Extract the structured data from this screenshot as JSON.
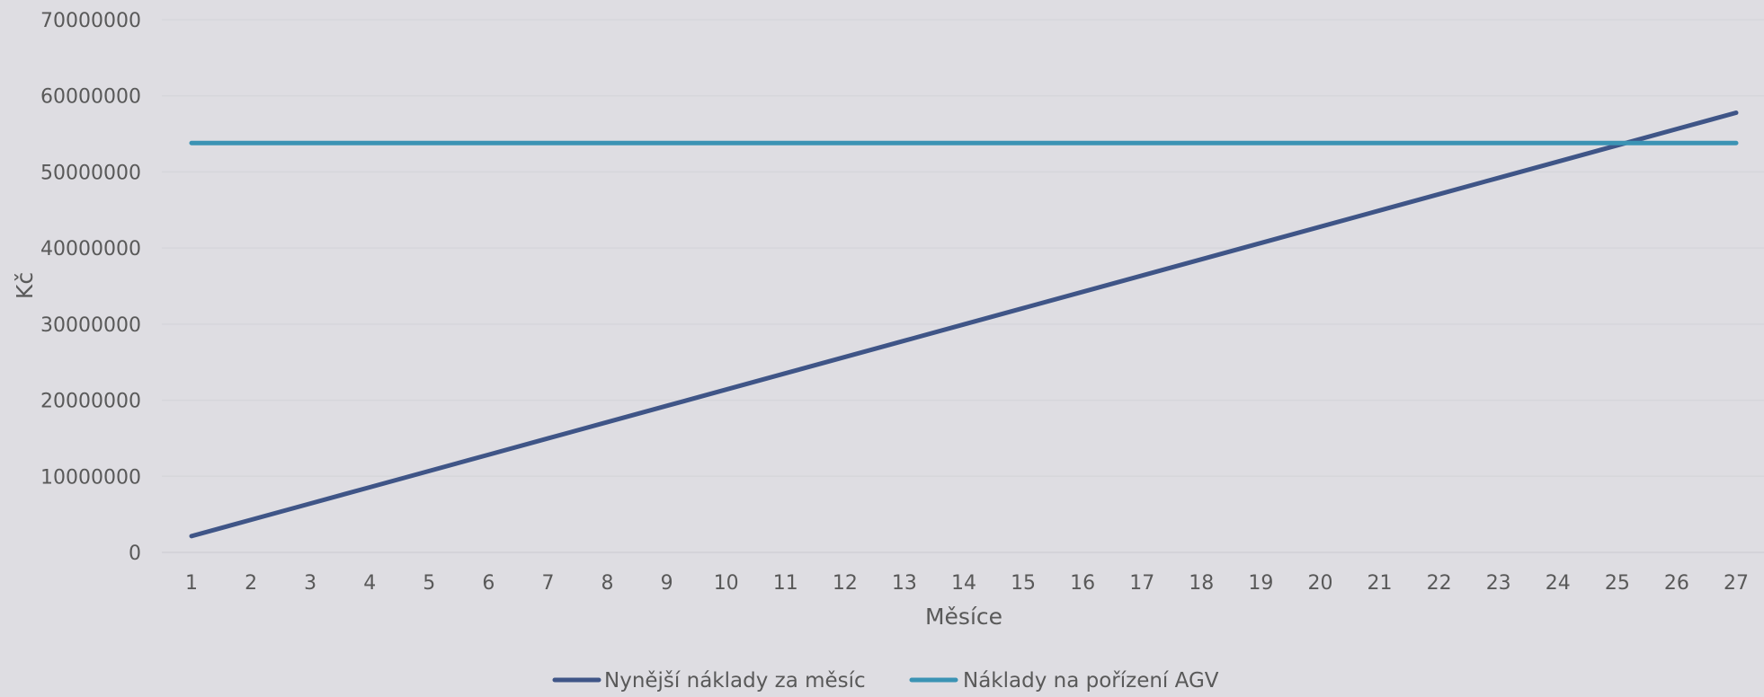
{
  "chart_data": {
    "type": "line",
    "xlabel": "Měsíce",
    "ylabel": "Kč",
    "ylim": [
      0,
      70000000
    ],
    "y_ticks": [
      0,
      10000000,
      20000000,
      30000000,
      40000000,
      50000000,
      60000000,
      70000000
    ],
    "x": [
      1,
      2,
      3,
      4,
      5,
      6,
      7,
      8,
      9,
      10,
      11,
      12,
      13,
      14,
      15,
      16,
      17,
      18,
      19,
      20,
      21,
      22,
      23,
      24,
      25,
      26,
      27
    ],
    "series": [
      {
        "name": "Nynější náklady za měsíc",
        "color": "#3f5587",
        "values": [
          2140000,
          4280000,
          6420000,
          8560000,
          10700000,
          12840000,
          14980000,
          17120000,
          19260000,
          21400000,
          23540000,
          25680000,
          27820000,
          29960000,
          32100000,
          34240000,
          36380000,
          38520000,
          40660000,
          42800000,
          44940000,
          47080000,
          49220000,
          51360000,
          53500000,
          55640000,
          57780000
        ]
      },
      {
        "name": "Náklady na pořízení AGV",
        "color": "#3b93b4",
        "values": [
          53800000,
          53800000,
          53800000,
          53800000,
          53800000,
          53800000,
          53800000,
          53800000,
          53800000,
          53800000,
          53800000,
          53800000,
          53800000,
          53800000,
          53800000,
          53800000,
          53800000,
          53800000,
          53800000,
          53800000,
          53800000,
          53800000,
          53800000,
          53800000,
          53800000,
          53800000,
          53800000
        ]
      }
    ],
    "grid": true,
    "legend_position": "bottom"
  }
}
